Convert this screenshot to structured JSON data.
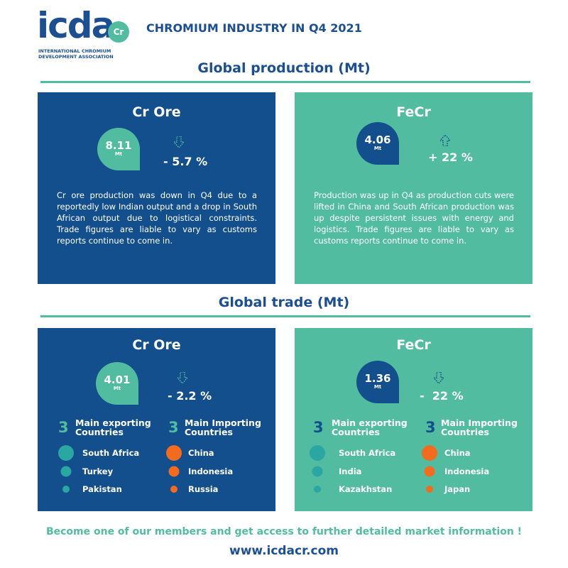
{
  "header": {
    "logo": "icda",
    "logo_badge": "Cr",
    "org_name": [
      "INTERNATIONAL CHROMIUM",
      "DEVELOPMENT ASSOCIATION"
    ],
    "title": "CHROMIUM INDUSTRY IN Q4 2021"
  },
  "production": {
    "heading": "Global production (Mt)",
    "panels": [
      {
        "title": "Cr Ore",
        "value": "8.11",
        "unit": "Mt",
        "change": "- 5.7 %",
        "text": "Cr ore production was down in Q4 due to a reportedly low Indian output and a drop in South African output due to logistical constraints. Trade figures are liable to vary as customs reports continue to come in."
      },
      {
        "title": "FeCr",
        "value": "4.06",
        "unit": "Mt",
        "change": "+ 22 %",
        "text": "Production was up in Q4 as production cuts were lifted in China and South African production was up despite persistent issues with energy and logistics. Trade figures are liable to vary as customs reports continue to come in."
      }
    ]
  },
  "trade": {
    "heading": "Global trade (Mt)",
    "panels": [
      {
        "title": "Cr Ore",
        "value": "4.01",
        "unit": "Mt",
        "change": "- 2.2 %",
        "exporting": {
          "count": "3",
          "label": "Main exporting Countries",
          "countries": [
            "South Africa",
            "Turkey",
            "Pakistan"
          ]
        },
        "importing": {
          "count": "3",
          "label": "Main Importing Countries",
          "countries": [
            "China",
            "Indonesia",
            "Russia"
          ]
        }
      },
      {
        "title": "FeCr",
        "value": "1.36",
        "unit": "Mt",
        "change": "-  22 %",
        "exporting": {
          "count": "3",
          "label": "Main exporting Countries",
          "countries": [
            "South Africa",
            "India",
            "Kazakhstan"
          ]
        },
        "importing": {
          "count": "3",
          "label": "Main Importing Countries",
          "countries": [
            "China",
            "Indonesia",
            "Japan"
          ]
        }
      }
    ]
  },
  "footer": {
    "cta": "Become one of our members and get access to further detailed market information !",
    "url": "www.icdacr.com"
  }
}
